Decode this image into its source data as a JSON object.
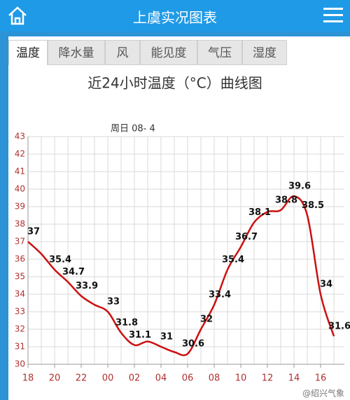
{
  "header": {
    "title": "上虞实况图表"
  },
  "tabs": [
    "温度",
    "降水量",
    "风",
    "能见度",
    "气压",
    "湿度"
  ],
  "watermark": "@绍兴气象",
  "chart_data": {
    "type": "line",
    "title": "近24小时温度（°C）曲线图",
    "annotation": "周日 08- 4",
    "categories": [
      "18",
      null,
      "20",
      null,
      "22",
      null,
      "00",
      null,
      "02",
      null,
      "04",
      null,
      "06",
      null,
      "08",
      null,
      "10",
      null,
      "12",
      null,
      "14",
      null,
      "16",
      null
    ],
    "series": [
      {
        "name": "温度",
        "color": "#cc1111",
        "values": [
          37,
          36.3,
          35.4,
          34.7,
          33.9,
          33.4,
          33,
          31.8,
          31.1,
          31.3,
          31,
          30.7,
          30.6,
          32,
          33.4,
          35.4,
          36.7,
          38.1,
          38.7,
          38.8,
          39.6,
          38.5,
          34,
          31.6
        ],
        "value_labels": [
          "37",
          null,
          "35.4",
          "34.7",
          "33.9",
          null,
          "33",
          "31.8",
          "31.1",
          null,
          "31",
          null,
          "30.6",
          "32",
          "33.4",
          "35.4",
          "36.7",
          "38.1",
          null,
          "38.8",
          "39.6",
          "38.5",
          "34",
          "31.6"
        ]
      }
    ],
    "ylim": [
      30,
      43
    ],
    "yticks": [
      30,
      31,
      32,
      33,
      34,
      35,
      36,
      37,
      38,
      39,
      40,
      41,
      42,
      43
    ],
    "grid": true,
    "tick_color": "#b03030"
  }
}
